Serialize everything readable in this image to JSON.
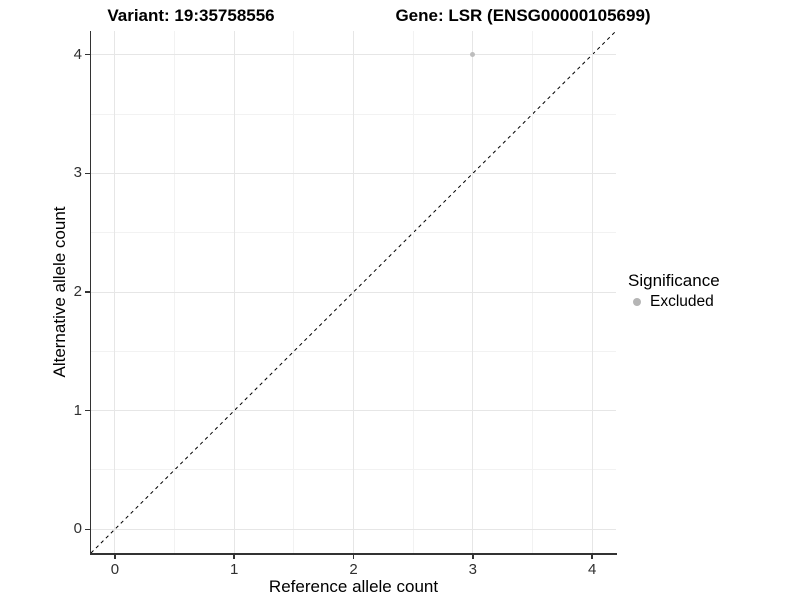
{
  "chart_data": {
    "type": "scatter",
    "title_left": "Variant: 19:35758556",
    "title_right": "Gene: LSR (ENSG00000105699)",
    "xlabel": "Reference allele count",
    "ylabel": "Alternative allele count",
    "xlim": [
      -0.2,
      4.2
    ],
    "ylim": [
      -0.2,
      4.2
    ],
    "x_ticks": [
      0,
      1,
      2,
      3,
      4
    ],
    "y_ticks": [
      0,
      1,
      2,
      3,
      4
    ],
    "x_minor_ticks": [
      0.5,
      1.5,
      2.5,
      3.5
    ],
    "y_minor_ticks": [
      0.5,
      1.5,
      2.5,
      3.5
    ],
    "grid": "major and minor gridlines on white background",
    "points": [
      {
        "x": 3,
        "y": 4,
        "significance": "Excluded",
        "color": "#bdbdbd"
      }
    ],
    "reference_line": {
      "type": "identity y=x",
      "style": "dashed",
      "color": "#000000",
      "from": [
        -0.2,
        -0.2
      ],
      "to": [
        4.2,
        4.2
      ]
    },
    "legend": {
      "title": "Significance",
      "position": "right",
      "entries": [
        {
          "label": "Excluded",
          "marker": "circle",
          "color": "#b5b5b5"
        }
      ]
    }
  },
  "colors": {
    "background": "#ffffff",
    "grid_major": "#e6e6e6",
    "grid_minor": "#f2f2f2",
    "axis_line": "#333333",
    "tick_label": "#303030",
    "title_text": "#000000",
    "point_gray": "#bdbdbd"
  }
}
